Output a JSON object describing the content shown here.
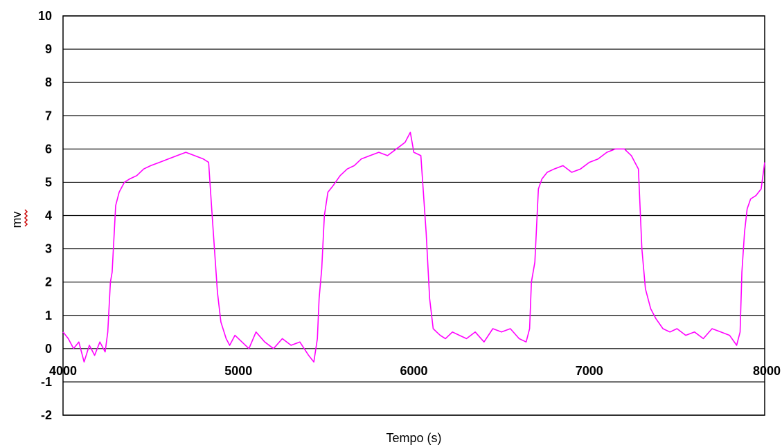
{
  "chart_data": {
    "type": "line",
    "title": "",
    "xlabel": "Tempo (s)",
    "ylabel": "mv",
    "xlim": [
      4000,
      8000
    ],
    "ylim": [
      -2,
      10
    ],
    "x_ticks": [
      "4000",
      "5000",
      "6000",
      "7000",
      "8000"
    ],
    "y_ticks": [
      "-2",
      "-1",
      "0",
      "1",
      "2",
      "3",
      "4",
      "5",
      "6",
      "7",
      "8",
      "9",
      "10"
    ],
    "grid": "horizontal",
    "legend": "none",
    "colors": {
      "series": "#ff00ff",
      "grid": "#000000",
      "ylabel_underline": "#cc0000"
    },
    "series": [
      {
        "x": [
          4000,
          4030,
          4060,
          4090,
          4120,
          4150,
          4180,
          4210,
          4240,
          4255,
          4270,
          4280,
          4300,
          4320,
          4350,
          4380,
          4420,
          4460,
          4500,
          4550,
          4600,
          4650,
          4700,
          4750,
          4800,
          4830,
          4850,
          4880,
          4900,
          4930,
          4950,
          4980,
          5020,
          5060,
          5100,
          5150,
          5200,
          5250,
          5300,
          5350,
          5400,
          5430,
          5450,
          5460,
          5475,
          5490,
          5510,
          5540,
          5580,
          5620,
          5660,
          5700,
          5750,
          5800,
          5850,
          5900,
          5950,
          5980,
          6000,
          6040,
          6070,
          6090,
          6110,
          6130,
          6150,
          6180,
          6220,
          6260,
          6300,
          6350,
          6400,
          6450,
          6500,
          6550,
          6600,
          6640,
          6660,
          6670,
          6690,
          6710,
          6730,
          6760,
          6800,
          6850,
          6900,
          6950,
          7000,
          7050,
          7100,
          7150,
          7200,
          7240,
          7260,
          7280,
          7300,
          7320,
          7350,
          7380,
          7420,
          7460,
          7500,
          7550,
          7600,
          7650,
          7700,
          7750,
          7800,
          7840,
          7860,
          7870,
          7885,
          7900,
          7920,
          7950,
          7980,
          8000
        ],
        "y": [
          0.5,
          0.3,
          0.0,
          0.2,
          -0.4,
          0.1,
          -0.2,
          0.2,
          -0.1,
          0.5,
          2.0,
          2.3,
          4.3,
          4.7,
          5.0,
          5.1,
          5.2,
          5.4,
          5.5,
          5.6,
          5.7,
          5.8,
          5.9,
          5.8,
          5.7,
          5.6,
          4.0,
          1.7,
          0.8,
          0.3,
          0.1,
          0.4,
          0.2,
          0.0,
          0.5,
          0.2,
          0.0,
          0.3,
          0.1,
          0.2,
          -0.2,
          -0.4,
          0.3,
          1.5,
          2.4,
          4.0,
          4.7,
          4.9,
          5.2,
          5.4,
          5.5,
          5.7,
          5.8,
          5.9,
          5.8,
          6.0,
          6.2,
          6.5,
          5.9,
          5.8,
          3.5,
          1.5,
          0.6,
          0.5,
          0.4,
          0.3,
          0.5,
          0.4,
          0.3,
          0.5,
          0.2,
          0.6,
          0.5,
          0.6,
          0.3,
          0.2,
          0.6,
          2.0,
          2.6,
          4.8,
          5.1,
          5.3,
          5.4,
          5.5,
          5.3,
          5.4,
          5.6,
          5.7,
          5.9,
          6.0,
          6.0,
          5.8,
          5.6,
          5.4,
          3.0,
          1.8,
          1.2,
          0.9,
          0.6,
          0.5,
          0.6,
          0.4,
          0.5,
          0.3,
          0.6,
          0.5,
          0.4,
          0.1,
          0.5,
          2.3,
          3.5,
          4.2,
          4.5,
          4.6,
          4.8,
          5.6
        ]
      }
    ]
  }
}
